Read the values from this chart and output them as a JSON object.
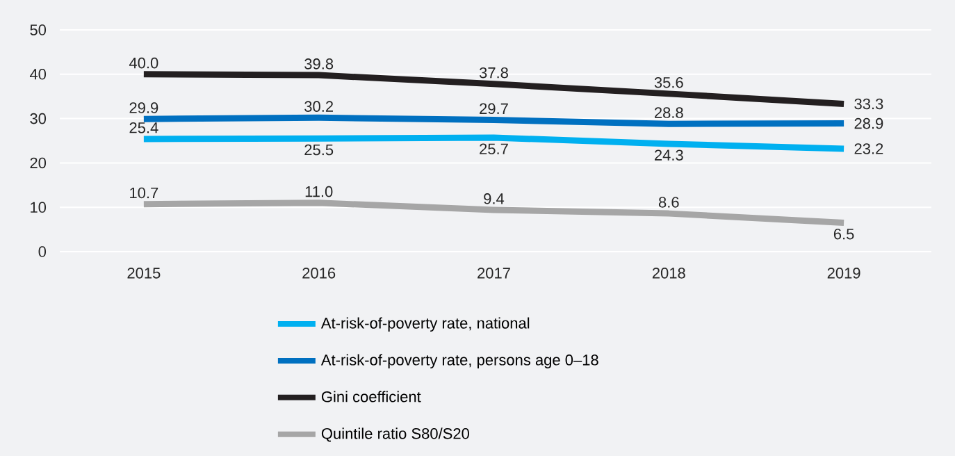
{
  "chart_data": {
    "type": "line",
    "categories": [
      "2015",
      "2016",
      "2017",
      "2018",
      "2019"
    ],
    "series": [
      {
        "name": "At-risk-of-poverty rate, national",
        "color": "#00b0f0",
        "values": [
          25.4,
          25.5,
          25.7,
          24.3,
          23.2
        ],
        "value_labels": [
          "25.4",
          "25.5",
          "25.7",
          "24.3",
          "23.2"
        ]
      },
      {
        "name": "At-risk-of-poverty rate, persons age 0–18",
        "color": "#0070c0",
        "values": [
          29.9,
          30.2,
          29.7,
          28.8,
          28.9
        ],
        "value_labels": [
          "29.9",
          "30.2",
          "29.7",
          "28.8",
          "28.9"
        ]
      },
      {
        "name": "Gini coefficient",
        "color": "#231f20",
        "values": [
          40.0,
          39.8,
          37.8,
          35.6,
          33.3
        ],
        "value_labels": [
          "40.0",
          "39.8",
          "37.8",
          "35.6",
          "33.3"
        ]
      },
      {
        "name": "Quintile ratio S80/S20",
        "color": "#a6a6a6",
        "values": [
          10.7,
          11.0,
          9.4,
          8.6,
          6.5
        ],
        "value_labels": [
          "10.7",
          "11.0",
          "9.4",
          "8.6",
          "6.5"
        ]
      }
    ],
    "ylim": [
      0,
      50
    ],
    "yticks": [
      0,
      10,
      20,
      30,
      40,
      50
    ],
    "grid": "y",
    "legend": "bottom"
  }
}
